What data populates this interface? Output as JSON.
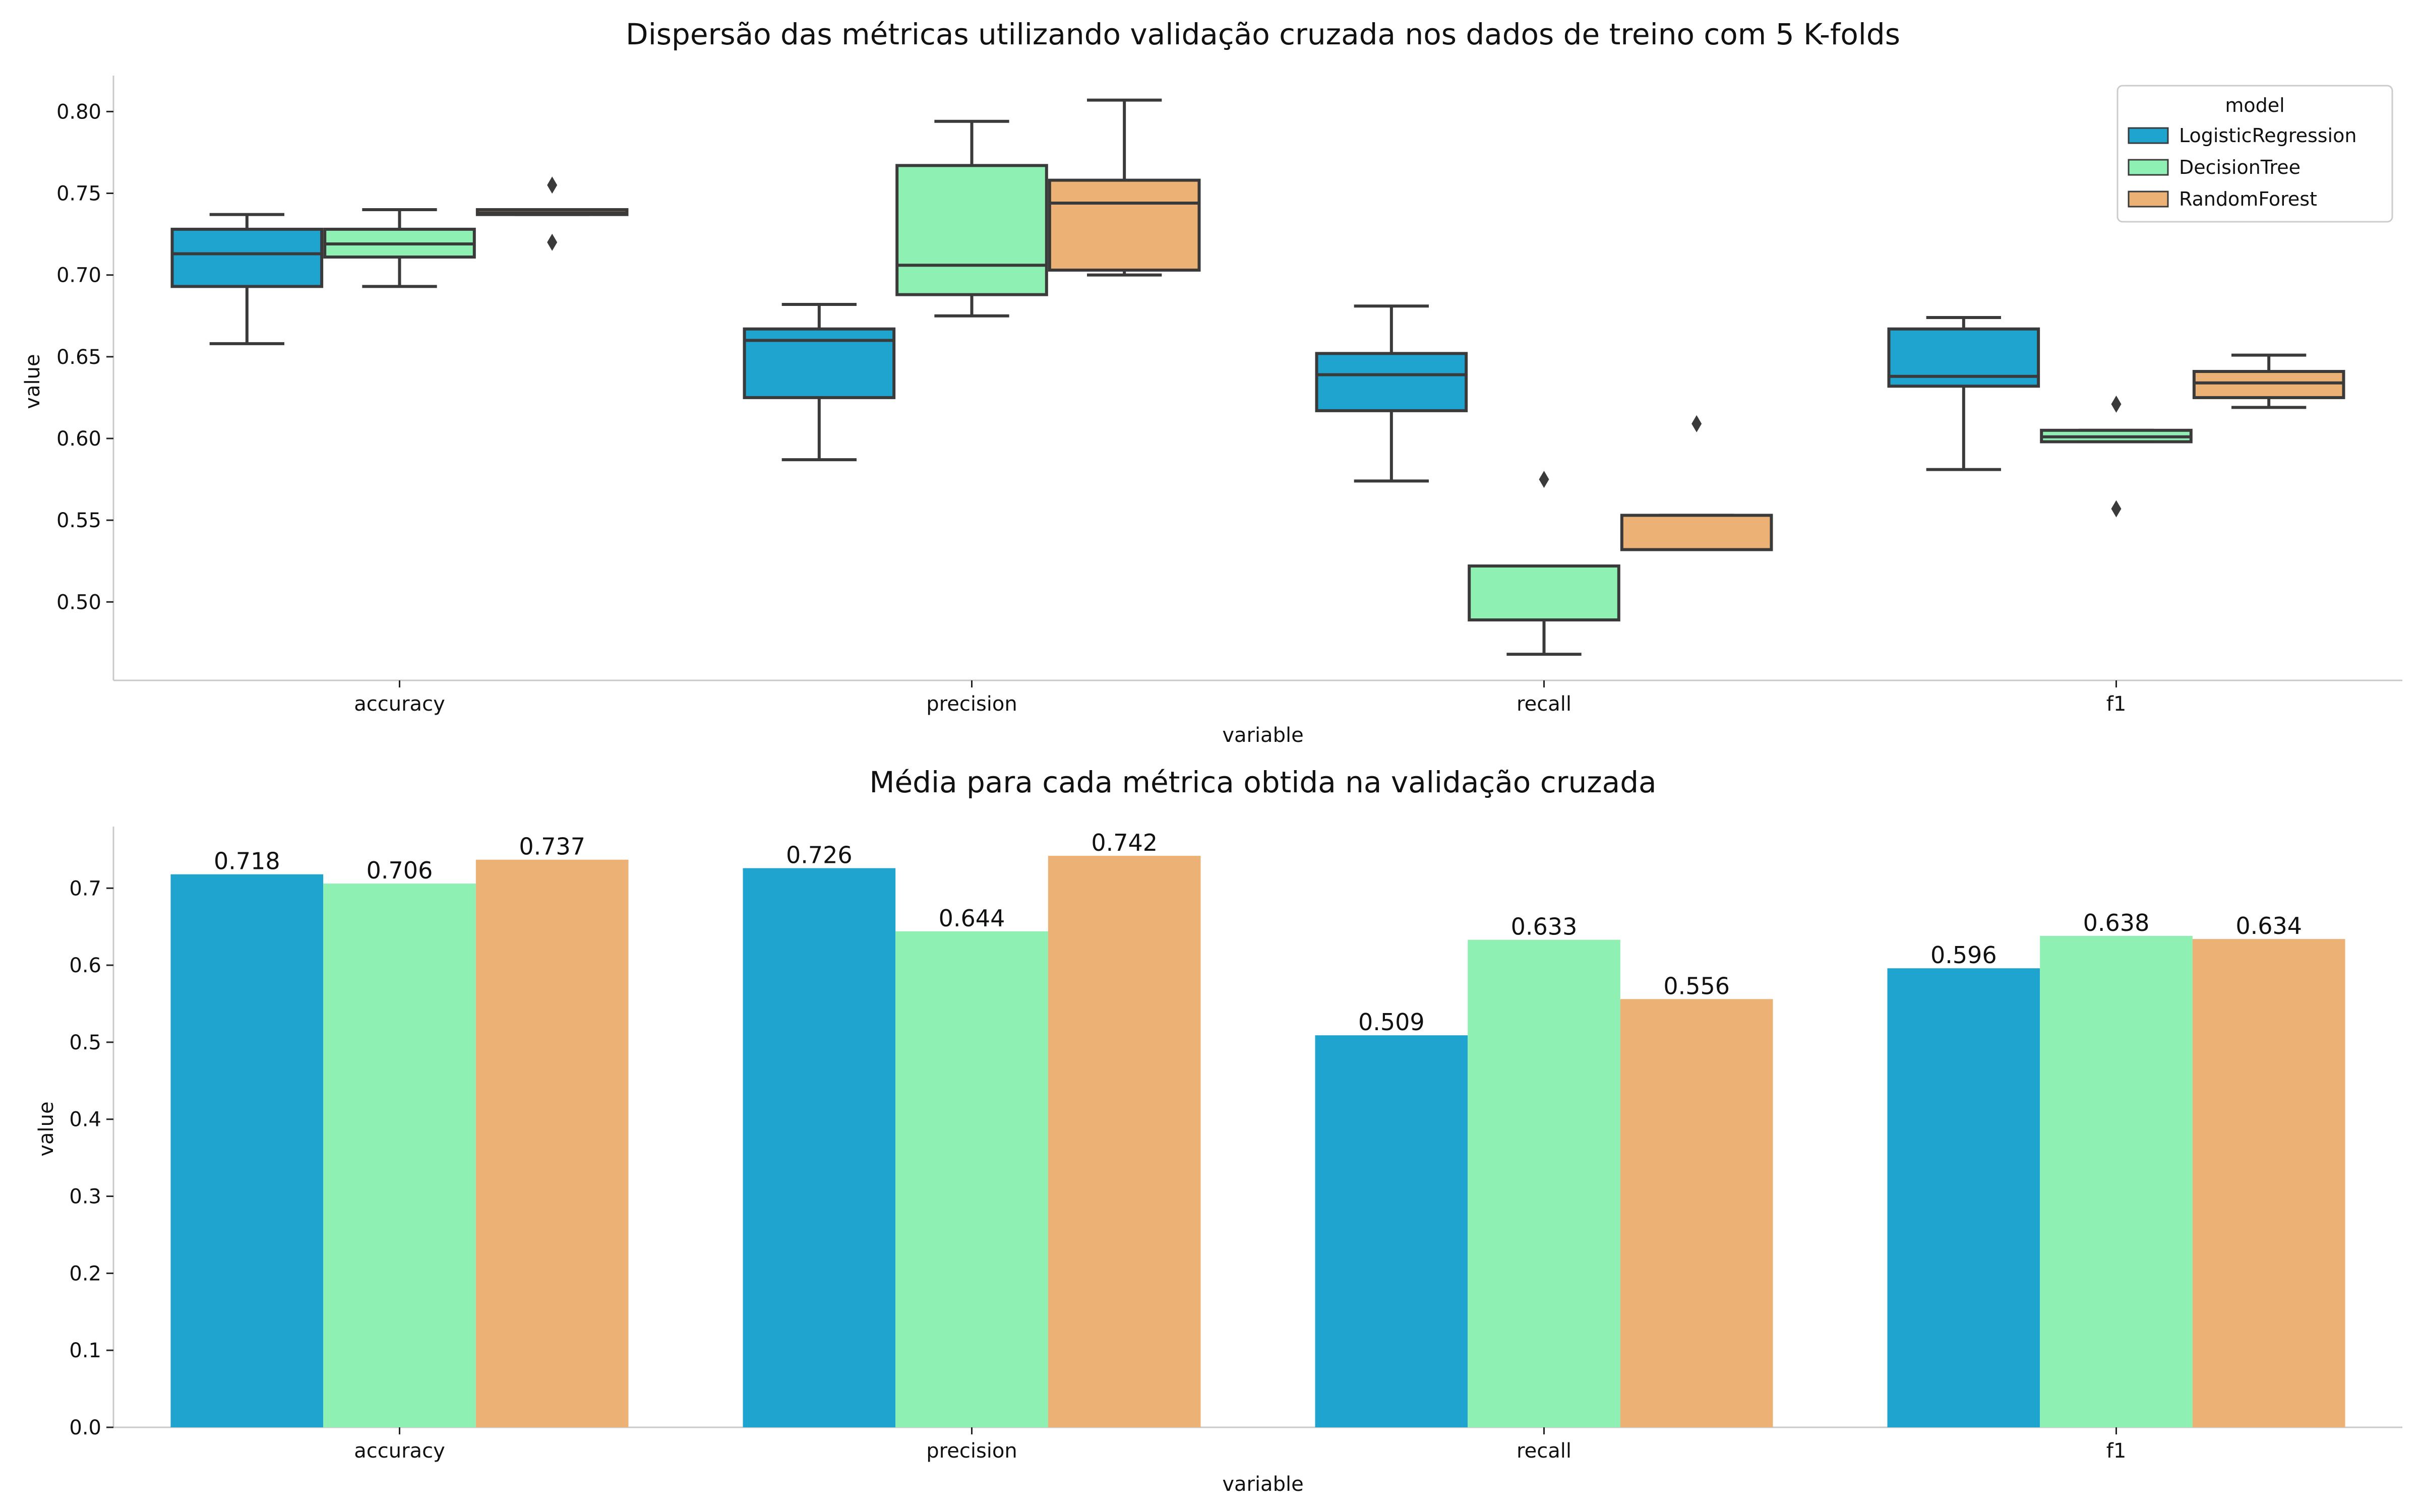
{
  "colors": {
    "LogisticRegression": "#1fa4cf",
    "DecisionTree": "#8ff0b4",
    "RandomForest": "#ebb175",
    "line": "#3a3a3a",
    "axis": "#c8c8c8"
  },
  "chart_data": [
    {
      "type": "box",
      "title": "Dispersão das métricas utilizando validação cruzada nos dados de treino com 5 K-folds",
      "xlabel": "variable",
      "ylabel": "value",
      "categories": [
        "accuracy",
        "precision",
        "recall",
        "f1"
      ],
      "ylim": [
        0.452,
        0.822
      ],
      "yticks": [
        0.5,
        0.55,
        0.6,
        0.65,
        0.7,
        0.75,
        0.8
      ],
      "ytick_labels": [
        "0.50",
        "0.55",
        "0.60",
        "0.65",
        "0.70",
        "0.75",
        "0.80"
      ],
      "legend": {
        "title": "model",
        "position": "top-right",
        "entries": [
          "LogisticRegression",
          "DecisionTree",
          "RandomForest"
        ]
      },
      "series": [
        {
          "name": "LogisticRegression",
          "boxes": [
            {
              "whislo": 0.658,
              "q1": 0.693,
              "med": 0.713,
              "q3": 0.728,
              "whishi": 0.737,
              "fliers": []
            },
            {
              "whislo": 0.587,
              "q1": 0.625,
              "med": 0.66,
              "q3": 0.667,
              "whishi": 0.682,
              "fliers": []
            },
            {
              "whislo": 0.574,
              "q1": 0.617,
              "med": 0.639,
              "q3": 0.652,
              "whishi": 0.681,
              "fliers": []
            },
            {
              "whislo": 0.581,
              "q1": 0.632,
              "med": 0.638,
              "q3": 0.667,
              "whishi": 0.674,
              "fliers": []
            }
          ]
        },
        {
          "name": "DecisionTree",
          "boxes": [
            {
              "whislo": 0.693,
              "q1": 0.711,
              "med": 0.719,
              "q3": 0.728,
              "whishi": 0.74,
              "fliers": []
            },
            {
              "whislo": 0.675,
              "q1": 0.688,
              "med": 0.706,
              "q3": 0.767,
              "whishi": 0.794,
              "fliers": []
            },
            {
              "whislo": 0.468,
              "q1": 0.489,
              "med": 0.489,
              "q3": 0.522,
              "whishi": 0.522,
              "fliers": [
                0.575
              ]
            },
            {
              "whislo": 0.598,
              "q1": 0.598,
              "med": 0.601,
              "q3": 0.605,
              "whishi": 0.605,
              "fliers": [
                0.621,
                0.557
              ]
            }
          ]
        },
        {
          "name": "RandomForest",
          "boxes": [
            {
              "whislo": 0.737,
              "q1": 0.737,
              "med": 0.738,
              "q3": 0.74,
              "whishi": 0.74,
              "fliers": [
                0.755,
                0.72
              ]
            },
            {
              "whislo": 0.7,
              "q1": 0.703,
              "med": 0.744,
              "q3": 0.758,
              "whishi": 0.807,
              "fliers": []
            },
            {
              "whislo": 0.532,
              "q1": 0.532,
              "med": 0.532,
              "q3": 0.553,
              "whishi": 0.553,
              "fliers": [
                0.609
              ]
            },
            {
              "whislo": 0.619,
              "q1": 0.625,
              "med": 0.634,
              "q3": 0.641,
              "whishi": 0.651,
              "fliers": []
            }
          ]
        }
      ]
    },
    {
      "type": "bar",
      "title": "Média para cada métrica obtida na validação cruzada",
      "xlabel": "variable",
      "ylabel": "value",
      "categories": [
        "accuracy",
        "precision",
        "recall",
        "f1"
      ],
      "ylim": [
        0,
        0.78
      ],
      "yticks": [
        0.0,
        0.1,
        0.2,
        0.3,
        0.4,
        0.5,
        0.6,
        0.7
      ],
      "ytick_labels": [
        "0.0",
        "0.1",
        "0.2",
        "0.3",
        "0.4",
        "0.5",
        "0.6",
        "0.7"
      ],
      "series": [
        {
          "name": "LogisticRegression",
          "values": [
            0.718,
            0.726,
            0.509,
            0.596
          ],
          "labels": [
            "0.718",
            "0.726",
            "0.509",
            "0.596"
          ]
        },
        {
          "name": "DecisionTree",
          "values": [
            0.706,
            0.644,
            0.633,
            0.638
          ],
          "labels": [
            "0.706",
            "0.644",
            "0.633",
            "0.638"
          ]
        },
        {
          "name": "RandomForest",
          "values": [
            0.737,
            0.742,
            0.556,
            0.634
          ],
          "labels": [
            "0.737",
            "0.742",
            "0.556",
            "0.634"
          ]
        }
      ]
    }
  ]
}
